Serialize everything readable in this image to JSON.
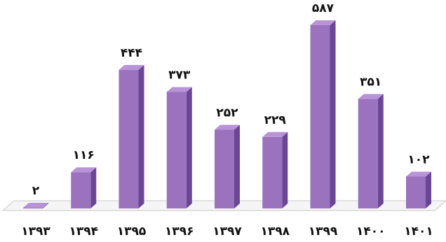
{
  "chart_data": {
    "type": "bar",
    "style": "3d-column",
    "categories": [
      "۱۳۹۳",
      "۱۳۹۴",
      "۱۳۹۵",
      "۱۳۹۶",
      "۱۳۹۷",
      "۱۳۹۸",
      "۱۳۹۹",
      "۱۴۰۰",
      "۱۴۰۱"
    ],
    "values": [
      2,
      116,
      444,
      373,
      252,
      229,
      587,
      351,
      102
    ],
    "value_labels": [
      "۲",
      "۱۱۶",
      "۴۴۴",
      "۳۷۳",
      "۲۵۲",
      "۲۲۹",
      "۵۸۷",
      "۳۵۱",
      "۱۰۲"
    ],
    "title": "",
    "xlabel": "",
    "ylabel": "",
    "ylim": [
      0,
      600
    ],
    "grid": false,
    "legend": "none",
    "colors": {
      "bar_front": "#9B72BE",
      "bar_side": "#6D4596",
      "bar_top": "#B993D8",
      "floor": "#F5F5F5",
      "floor_edge": "#C8C8C8"
    }
  }
}
